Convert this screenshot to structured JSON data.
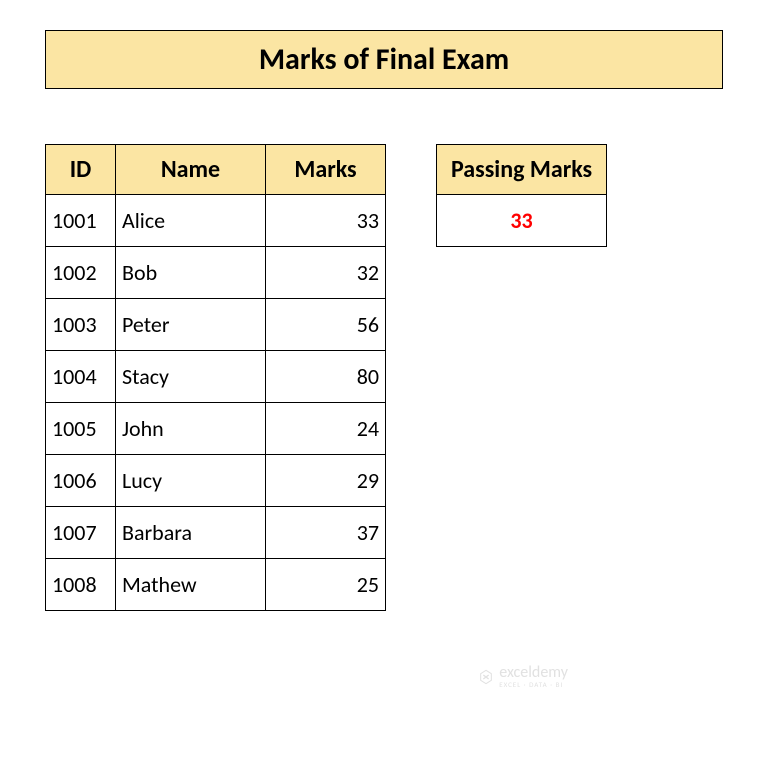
{
  "title": "Marks of Final Exam",
  "colors": {
    "header_bg": "#fbe5a3",
    "border": "#000000",
    "passing_value": "#ff0000",
    "background": "#ffffff",
    "watermark": "#c9c9c9"
  },
  "table": {
    "headers": {
      "id": "ID",
      "name": "Name",
      "marks": "Marks"
    },
    "rows": [
      {
        "id": "1001",
        "name": "Alice",
        "marks": "33"
      },
      {
        "id": "1002",
        "name": "Bob",
        "marks": "32"
      },
      {
        "id": "1003",
        "name": "Peter",
        "marks": "56"
      },
      {
        "id": "1004",
        "name": "Stacy",
        "marks": "80"
      },
      {
        "id": "1005",
        "name": "John",
        "marks": "24"
      },
      {
        "id": "1006",
        "name": "Lucy",
        "marks": "29"
      },
      {
        "id": "1007",
        "name": "Barbara",
        "marks": "37"
      },
      {
        "id": "1008",
        "name": "Mathew",
        "marks": "25"
      }
    ]
  },
  "passing": {
    "label": "Passing Marks",
    "value": "33"
  },
  "watermark": {
    "main": "exceldemy",
    "sub": "EXCEL · DATA · BI"
  }
}
